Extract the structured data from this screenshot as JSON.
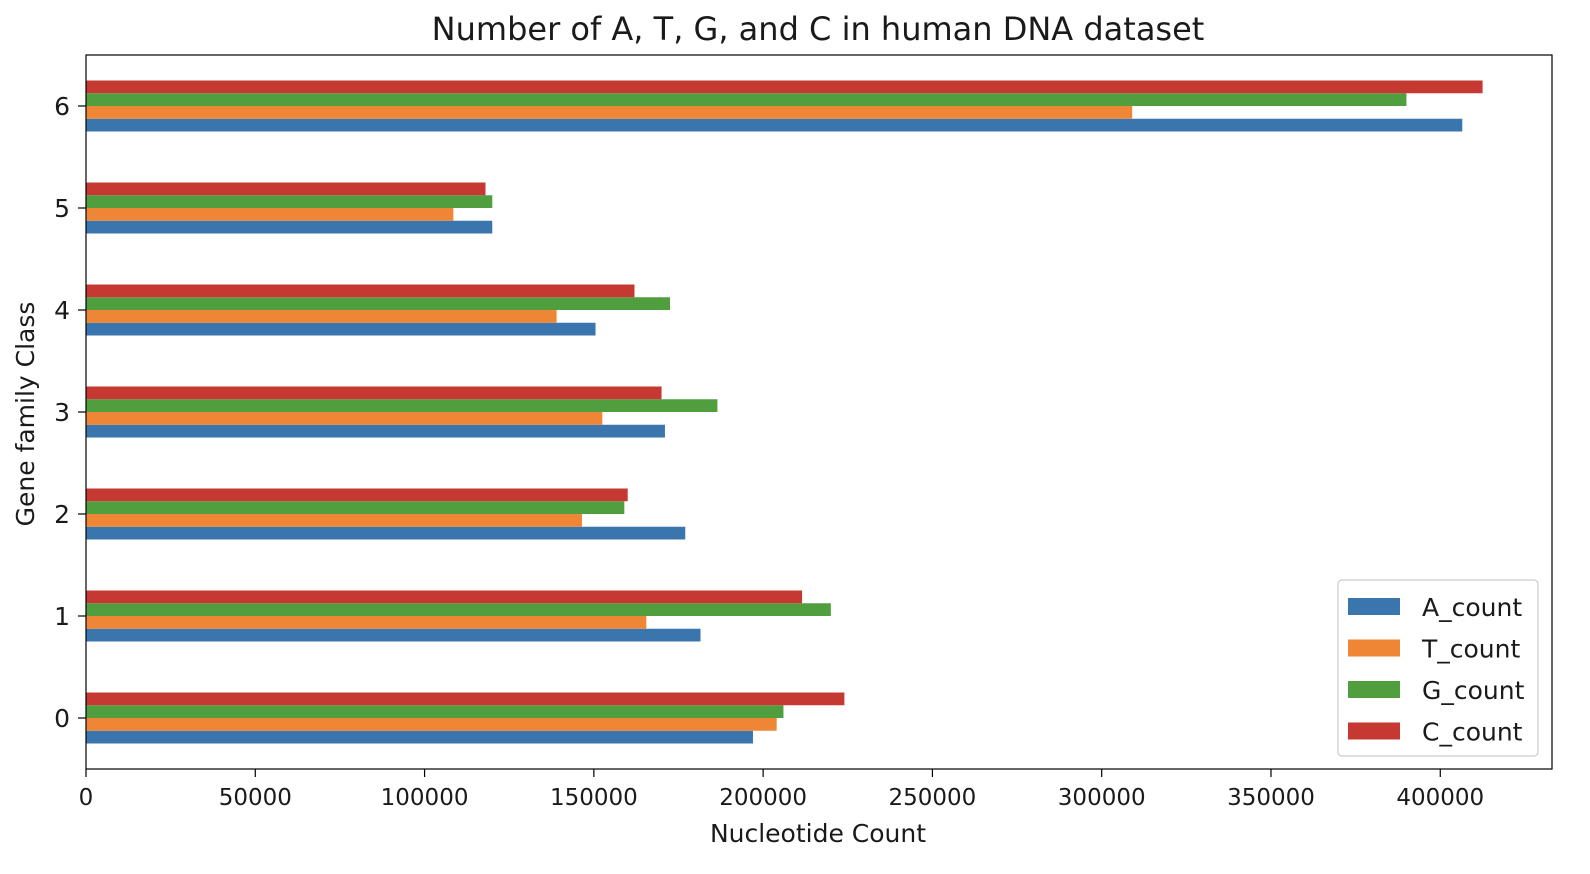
{
  "chart_data": {
    "type": "bar",
    "orientation": "horizontal",
    "title": "Number of A, T, G, and C in human DNA dataset",
    "xlabel": "Nucleotide Count",
    "ylabel": "Gene family Class",
    "categories": [
      "0",
      "1",
      "2",
      "3",
      "4",
      "5",
      "6"
    ],
    "xlim": [
      0,
      433000
    ],
    "xticks": [
      0,
      50000,
      100000,
      150000,
      200000,
      250000,
      300000,
      350000,
      400000
    ],
    "grid": false,
    "legend_position": "bottom-right",
    "series": [
      {
        "name": "A_count",
        "color": "#3a75ae",
        "values": [
          197000,
          181500,
          177000,
          171000,
          150500,
          120000,
          406500
        ]
      },
      {
        "name": "T_count",
        "color": "#ef8636",
        "values": [
          204000,
          165500,
          146500,
          152500,
          139000,
          108500,
          309000
        ]
      },
      {
        "name": "G_count",
        "color": "#519e3e",
        "values": [
          206000,
          220000,
          159000,
          186500,
          172500,
          120000,
          390000
        ]
      },
      {
        "name": "C_count",
        "color": "#c53932",
        "values": [
          224000,
          211500,
          160000,
          170000,
          162000,
          118000,
          412500
        ]
      }
    ]
  }
}
